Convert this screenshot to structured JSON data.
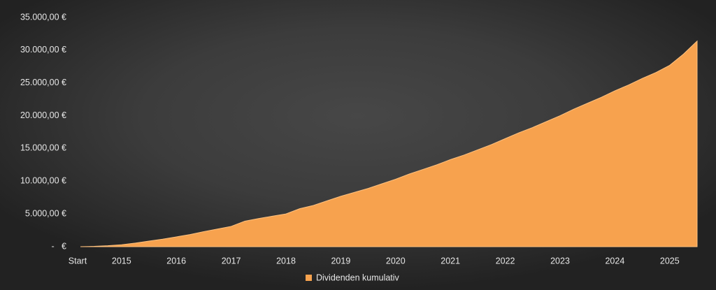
{
  "chart_data": {
    "type": "area",
    "categories": [
      "Start",
      null,
      null,
      "2015",
      null,
      null,
      null,
      "2016",
      null,
      null,
      null,
      "2017",
      null,
      null,
      null,
      "2018",
      null,
      null,
      null,
      "2019",
      null,
      null,
      null,
      "2020",
      null,
      null,
      null,
      "2021",
      null,
      null,
      null,
      "2022",
      null,
      null,
      null,
      "2023",
      null,
      null,
      null,
      "2024",
      null,
      null,
      null,
      "2025",
      null,
      null
    ],
    "series": [
      {
        "name": "Dividenden kumulativ",
        "color": "#f7a24e",
        "values": [
          0,
          50,
          150,
          300,
          550,
          850,
          1150,
          1500,
          1850,
          2300,
          2700,
          3100,
          3900,
          4300,
          4650,
          5000,
          5800,
          6300,
          7000,
          7700,
          8300,
          8900,
          9600,
          10300,
          11100,
          11800,
          12500,
          13300,
          14000,
          14800,
          15600,
          16500,
          17400,
          18200,
          19100,
          20000,
          21000,
          21900,
          22800,
          23800,
          24700,
          25700,
          26600,
          27700,
          29400,
          31400
        ]
      }
    ],
    "ylim": [
      0,
      35000
    ],
    "yticks": [
      {
        "value": 0,
        "label": "-   €"
      },
      {
        "value": 5000,
        "label": "5.000,00 €"
      },
      {
        "value": 10000,
        "label": "10.000,00 €"
      },
      {
        "value": 15000,
        "label": "15.000,00 €"
      },
      {
        "value": 20000,
        "label": "20.000,00 €"
      },
      {
        "value": 25000,
        "label": "25.000,00 €"
      },
      {
        "value": 30000,
        "label": "30.000,00 €"
      },
      {
        "value": 35000,
        "label": "35.000,00 €"
      }
    ],
    "grid": false,
    "legend": "bottom"
  }
}
